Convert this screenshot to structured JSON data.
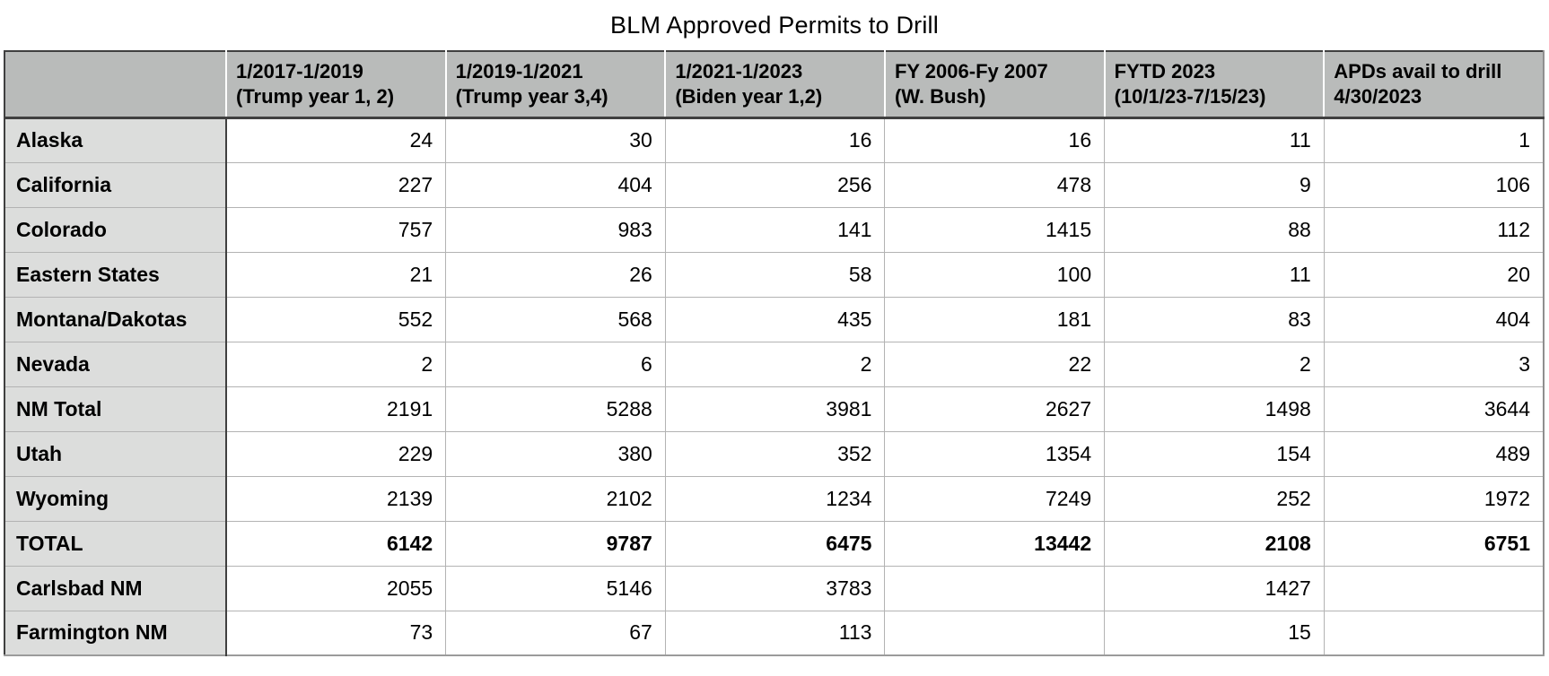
{
  "chart_data": {
    "type": "table",
    "title": "BLM Approved Permits to Drill",
    "corner_label": "",
    "columns": [
      "1/2017-1/2019\n(Trump year 1, 2)",
      "1/2019-1/2021\n(Trump year 3,4)",
      "1/2021-1/2023\n(Biden year 1,2)",
      "FY 2006-Fy 2007\n(W. Bush)",
      "FYTD 2023\n(10/1/23-7/15/23)",
      "APDs avail to drill\n4/30/2023"
    ],
    "rows": [
      {
        "label": "Alaska",
        "bold": false,
        "values": [
          "24",
          "30",
          "16",
          "16",
          "11",
          "1"
        ]
      },
      {
        "label": "California",
        "bold": false,
        "values": [
          "227",
          "404",
          "256",
          "478",
          "9",
          "106"
        ]
      },
      {
        "label": "Colorado",
        "bold": false,
        "values": [
          "757",
          "983",
          "141",
          "1415",
          "88",
          "112"
        ]
      },
      {
        "label": "Eastern States",
        "bold": false,
        "values": [
          "21",
          "26",
          "58",
          "100",
          "11",
          "20"
        ]
      },
      {
        "label": "Montana/Dakotas",
        "bold": false,
        "values": [
          "552",
          "568",
          "435",
          "181",
          "83",
          "404"
        ]
      },
      {
        "label": "Nevada",
        "bold": false,
        "values": [
          "2",
          "6",
          "2",
          "22",
          "2",
          "3"
        ]
      },
      {
        "label": "NM Total",
        "bold": false,
        "values": [
          "2191",
          "5288",
          "3981",
          "2627",
          "1498",
          "3644"
        ]
      },
      {
        "label": "Utah",
        "bold": false,
        "values": [
          "229",
          "380",
          "352",
          "1354",
          "154",
          "489"
        ]
      },
      {
        "label": "Wyoming",
        "bold": false,
        "values": [
          "2139",
          "2102",
          "1234",
          "7249",
          "252",
          "1972"
        ]
      },
      {
        "label": "TOTAL",
        "bold": true,
        "values": [
          "6142",
          "9787",
          "6475",
          "13442",
          "2108",
          "6751"
        ]
      },
      {
        "label": "Carlsbad NM",
        "bold": false,
        "values": [
          "2055",
          "5146",
          "3783",
          "",
          "1427",
          ""
        ]
      },
      {
        "label": "Farmington NM",
        "bold": false,
        "values": [
          "73",
          "67",
          "113",
          "",
          "15",
          ""
        ]
      }
    ],
    "colors": {
      "header_background": "#b9bbba",
      "row_label_background": "#dcdddc",
      "grid_line": "#b3b3b3",
      "dark_border": "#404040"
    }
  }
}
